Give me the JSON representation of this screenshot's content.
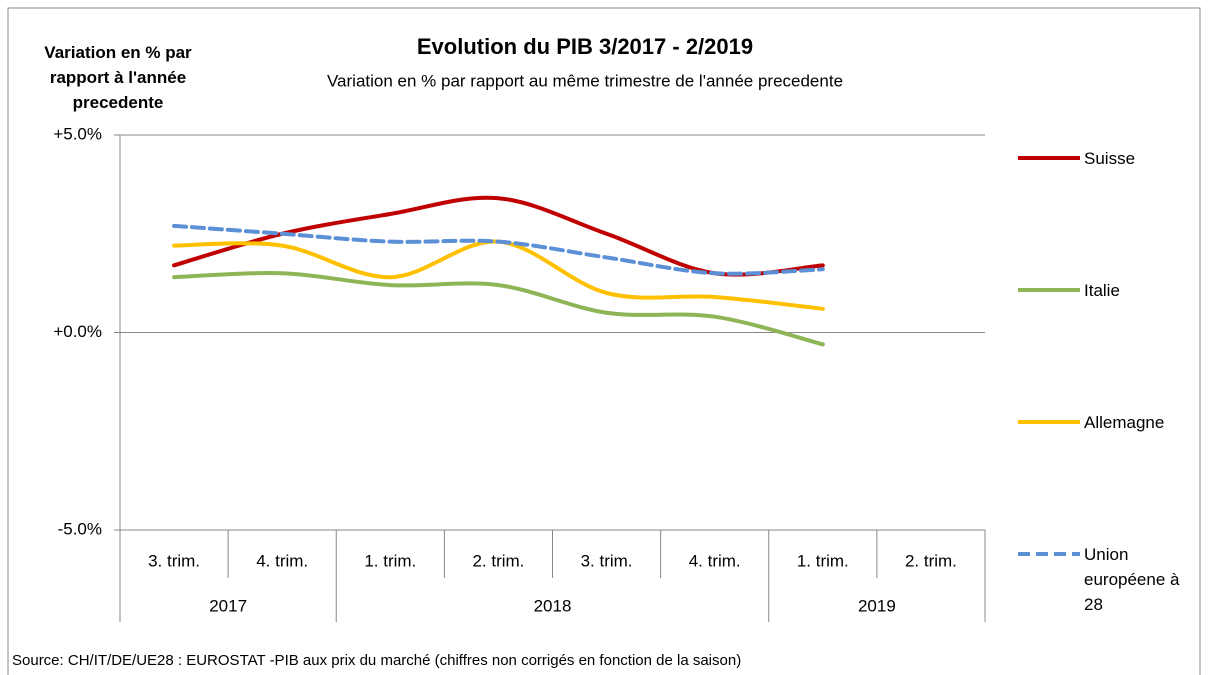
{
  "chart_data": {
    "type": "line",
    "title": "Evolution du PIB 3/2017 - 2/2019",
    "subtitle": "Variation en % par rapport au même trimestre de l'année precedente",
    "y_label": "Variation en % par rapport à l'année precedente",
    "source": "Source: CH/IT/DE/UE28 : EUROSTAT -PIB aux prix du marché (chiffres non corrigés en fonction de la saison)",
    "categories": [
      "3. trim.",
      "4. trim.",
      "1. trim.",
      "2. trim.",
      "3. trim.",
      "4. trim.",
      "1. trim.",
      "2. trim."
    ],
    "years": [
      "2017",
      "2017",
      "2018",
      "2018",
      "2018",
      "2018",
      "2019",
      "2019"
    ],
    "series": [
      {
        "name": "Suisse",
        "color": "#c00000",
        "dashed": false,
        "values": [
          1.7,
          2.5,
          3.0,
          3.4,
          2.5,
          1.5,
          1.7,
          null
        ]
      },
      {
        "name": "Italie",
        "color": "#8db556",
        "dashed": false,
        "values": [
          1.4,
          1.5,
          1.2,
          1.2,
          0.5,
          0.4,
          -0.3,
          null
        ]
      },
      {
        "name": "Allemagne",
        "color": "#ffc000",
        "dashed": false,
        "values": [
          2.2,
          2.2,
          1.4,
          2.3,
          1.0,
          0.9,
          0.6,
          null
        ]
      },
      {
        "name": "Union européene à 28",
        "color": "#5b8fd6",
        "dashed": true,
        "values": [
          2.7,
          2.5,
          2.3,
          2.3,
          1.9,
          1.5,
          1.6,
          null
        ]
      }
    ],
    "ylim": [
      -5,
      5
    ],
    "yticks": [
      {
        "value": 5,
        "label": "+5.0%"
      },
      {
        "value": 0,
        "label": "+0.0%"
      },
      {
        "value": -5,
        "label": "-5.0%"
      }
    ],
    "grid": true
  }
}
